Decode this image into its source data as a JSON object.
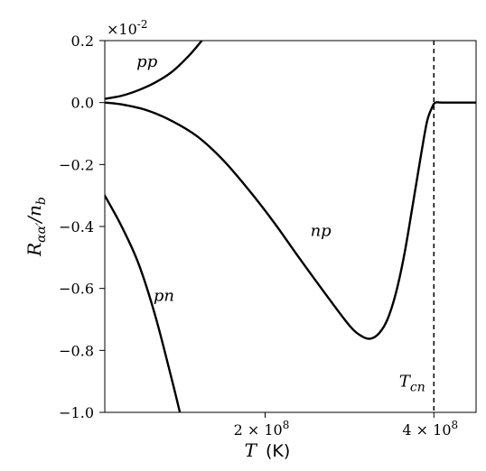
{
  "chart_data": {
    "type": "line",
    "xlabel_var": "T",
    "xlabel_unit": "(K)",
    "ylabel": "R_{αα'}/n_b",
    "y_multiplier": "×10^{-2}",
    "xlim": [
      10000000,
      450000000
    ],
    "ylim": [
      -1.0,
      0.2
    ],
    "x_ticks": [
      {
        "value": 200000000,
        "mantissa": "2",
        "exponent": "8"
      },
      {
        "value": 400000000,
        "mantissa": "4",
        "exponent": "8"
      }
    ],
    "y_ticks": [
      {
        "value": 0.2,
        "label": "0.2"
      },
      {
        "value": 0.0,
        "label": "0.0"
      },
      {
        "value": -0.2,
        "label": "−0.2"
      },
      {
        "value": -0.4,
        "label": "−0.4"
      },
      {
        "value": -0.6,
        "label": "−0.6"
      },
      {
        "value": -0.8,
        "label": "−0.8"
      },
      {
        "value": -1.0,
        "label": "−1.0"
      }
    ],
    "vline": {
      "x": 400000000,
      "style": "dashed",
      "label": "T_cn"
    },
    "series": [
      {
        "name": "pp",
        "x": [
          10000000,
          30000000,
          50000000,
          70000000,
          90000000,
          110000000,
          125000000
        ],
        "y": [
          0.012,
          0.022,
          0.04,
          0.065,
          0.1,
          0.152,
          0.2
        ]
      },
      {
        "name": "np",
        "x": [
          10000000,
          30000000,
          60000000,
          90000000,
          120000000,
          150000000,
          180000000,
          210000000,
          240000000,
          270000000,
          300000000,
          315000000,
          325000000,
          335000000,
          345000000,
          355000000,
          365000000,
          375000000,
          385000000,
          392000000,
          398000000,
          402000000,
          410000000,
          450000000
        ],
        "y": [
          0.0,
          -0.006,
          -0.025,
          -0.06,
          -0.11,
          -0.185,
          -0.28,
          -0.385,
          -0.5,
          -0.612,
          -0.72,
          -0.755,
          -0.762,
          -0.745,
          -0.7,
          -0.615,
          -0.49,
          -0.33,
          -0.165,
          -0.06,
          -0.015,
          0.0,
          0.0,
          0.0
        ]
      },
      {
        "name": "pn",
        "x": [
          10000000,
          30000000,
          50000000,
          70000000,
          90000000,
          99000000
        ],
        "y": [
          -0.3,
          -0.4,
          -0.52,
          -0.69,
          -0.9,
          -1.0
        ]
      }
    ]
  }
}
